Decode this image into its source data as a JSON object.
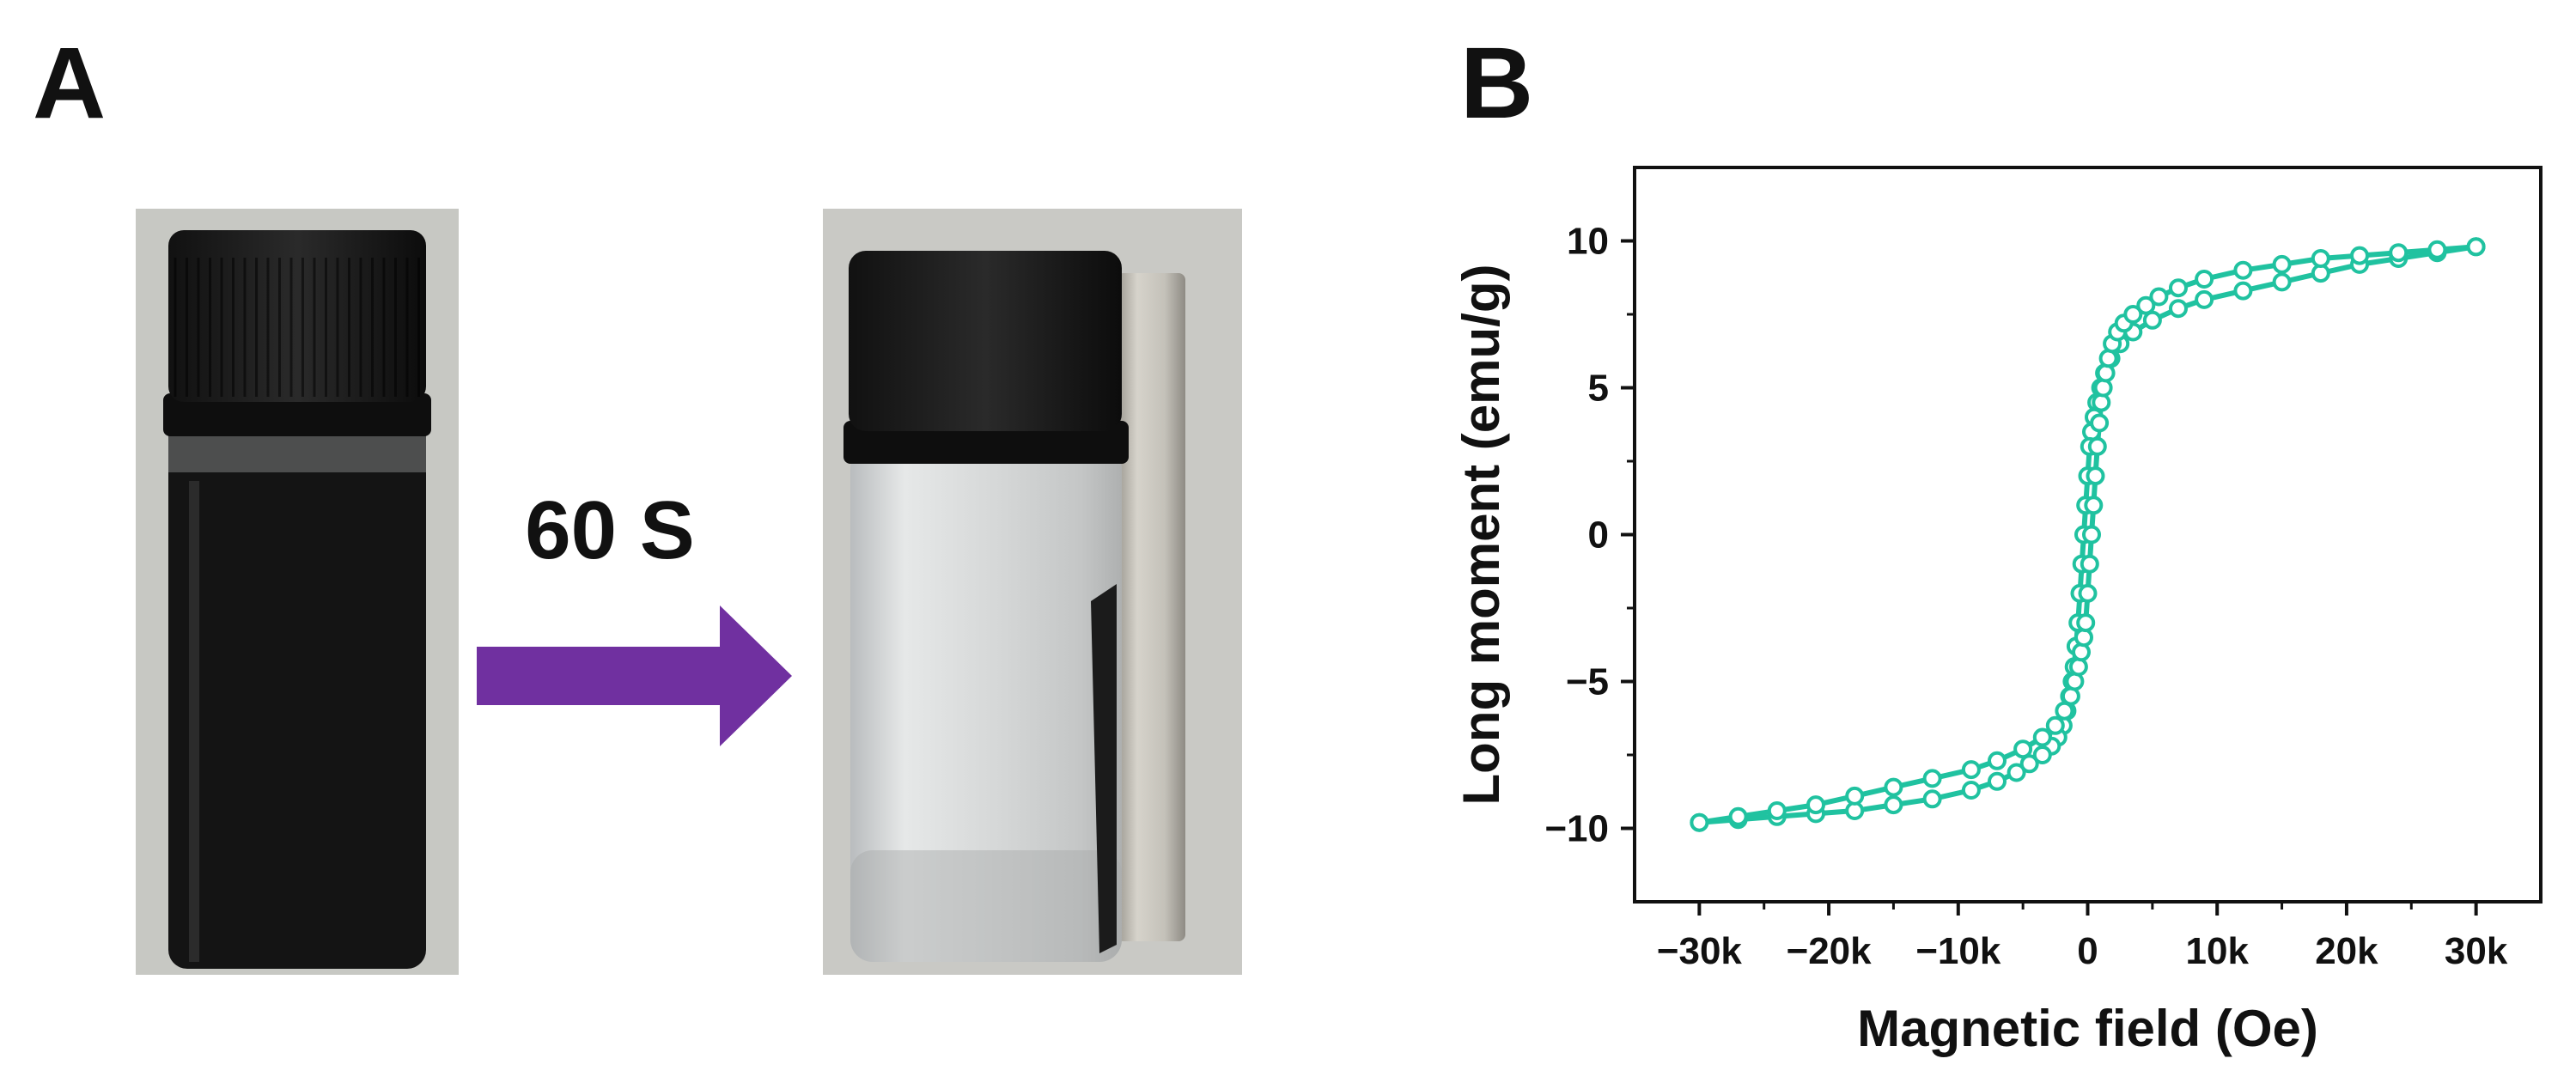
{
  "panels": {
    "a": {
      "label": "A",
      "time_label": "60 S",
      "arrow_color": "#7030a0",
      "photos": [
        {
          "description": "vial-dark-suspension",
          "state": "before"
        },
        {
          "description": "vial-clear-with-magnet",
          "state": "after"
        }
      ]
    },
    "b": {
      "label": "B"
    }
  },
  "chart_data": {
    "type": "line",
    "title": "",
    "xlabel": "Magnetic field (Oe)",
    "ylabel": "Long moment (emu/g)",
    "xlim": [
      -35000,
      35000
    ],
    "ylim": [
      -12.5,
      12.5
    ],
    "xticks": [
      -30000,
      -20000,
      -10000,
      0,
      10000,
      20000,
      30000
    ],
    "xtick_labels": [
      "−30k",
      "−20k",
      "−10k",
      "0",
      "10k",
      "20k",
      "30k"
    ],
    "yticks": [
      -10,
      -5,
      0,
      5,
      10
    ],
    "ytick_labels": [
      "−10",
      "−5",
      "0",
      "5",
      "10"
    ],
    "grid": false,
    "color": "#20c2a0",
    "series": [
      {
        "marker": "open-circle",
        "x": [
          30000,
          27000,
          24000,
          21000,
          18000,
          15000,
          12000,
          9000,
          7000,
          5000,
          3500,
          2500,
          1800,
          1300,
          1000,
          700,
          500,
          300,
          150,
          0,
          -150,
          -300,
          -450,
          -600,
          -750,
          -900,
          -1050,
          -1200,
          -1400,
          -1600,
          -1900,
          -2300,
          -2800,
          -3500,
          -4500,
          -5500,
          -7000,
          -9000,
          -12000,
          -15000,
          -18000,
          -21000,
          -24000,
          -27000,
          -30000
        ],
        "y": [
          9.8,
          9.6,
          9.4,
          9.2,
          8.9,
          8.6,
          8.3,
          8.0,
          7.7,
          7.3,
          6.9,
          6.5,
          6.0,
          5.5,
          5.0,
          4.5,
          4.0,
          3.5,
          3.0,
          2.0,
          1.0,
          0.0,
          -1.0,
          -2.0,
          -3.0,
          -3.8,
          -4.5,
          -5.0,
          -5.5,
          -6.0,
          -6.5,
          -6.9,
          -7.2,
          -7.5,
          -7.8,
          -8.1,
          -8.4,
          -8.7,
          -9.0,
          -9.2,
          -9.4,
          -9.5,
          -9.6,
          -9.7,
          -9.8
        ]
      },
      {
        "marker": "open-circle",
        "x": [
          -30000,
          -27000,
          -24000,
          -21000,
          -18000,
          -15000,
          -12000,
          -9000,
          -7000,
          -5000,
          -3500,
          -2500,
          -1800,
          -1300,
          -1000,
          -700,
          -500,
          -300,
          -150,
          0,
          150,
          300,
          450,
          600,
          750,
          900,
          1050,
          1200,
          1400,
          1600,
          1900,
          2300,
          2800,
          3500,
          4500,
          5500,
          7000,
          9000,
          12000,
          15000,
          18000,
          21000,
          24000,
          27000,
          30000
        ],
        "y": [
          -9.8,
          -9.6,
          -9.4,
          -9.2,
          -8.9,
          -8.6,
          -8.3,
          -8.0,
          -7.7,
          -7.3,
          -6.9,
          -6.5,
          -6.0,
          -5.5,
          -5.0,
          -4.5,
          -4.0,
          -3.5,
          -3.0,
          -2.0,
          -1.0,
          0.0,
          1.0,
          2.0,
          3.0,
          3.8,
          4.5,
          5.0,
          5.5,
          6.0,
          6.5,
          6.9,
          7.2,
          7.5,
          7.8,
          8.1,
          8.4,
          8.7,
          9.0,
          9.2,
          9.4,
          9.5,
          9.6,
          9.7,
          9.8
        ]
      }
    ]
  }
}
